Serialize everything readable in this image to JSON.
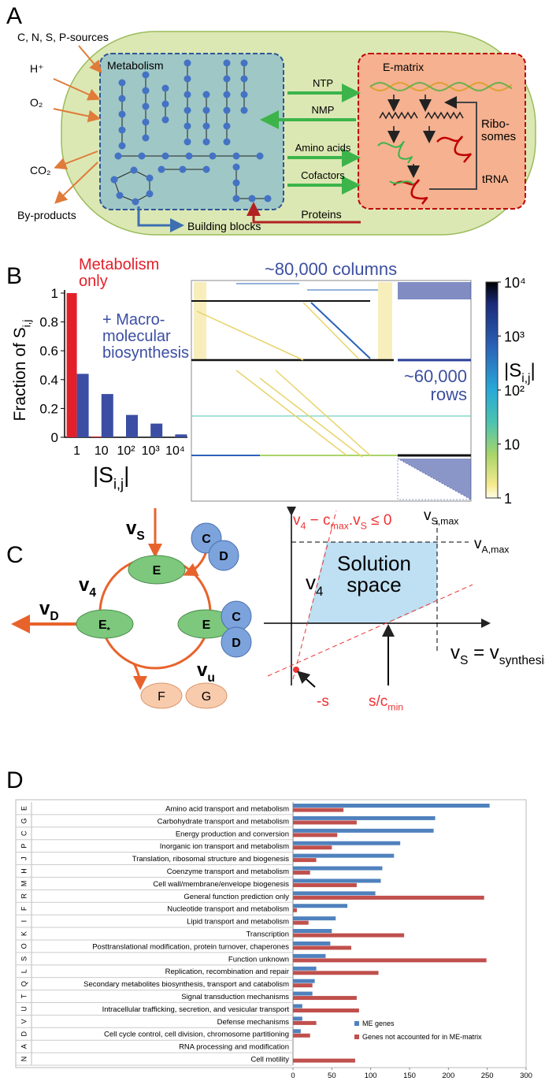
{
  "panel_labels": [
    "A",
    "B",
    "C",
    "D"
  ],
  "diagram_a": {
    "inputs": [
      "C, N, S, P-sources",
      "H⁺",
      "O₂",
      "CO₂",
      "By-products"
    ],
    "metabolism": "Metabolism",
    "e_matrix": "E-matrix",
    "exchanges": [
      "NTP",
      "NMP",
      "Amino acids",
      "Cofactors"
    ],
    "proteins": "Proteins",
    "building_blocks": "Building blocks",
    "ribosomes": "Ribo-somes",
    "trna": "tRNA"
  },
  "matrix_b": {
    "columns_note": "~80,000 columns",
    "rows_note": "~60,000 rows",
    "colorbar": {
      "scale": "log",
      "lim": [
        1,
        10000
      ],
      "ticks": [
        1,
        10,
        {
          "value": 100,
          "label": "10²"
        },
        {
          "value": 1000,
          "label": "10³"
        },
        {
          "value": 10000,
          "label": "10⁴"
        }
      ],
      "label": [
        {
          "text": "|S"
        },
        {
          "sub": "i,j"
        },
        {
          "text": "|"
        }
      ]
    }
  },
  "chart_data": [
    {
      "type": "bar",
      "categories": [
        "1",
        "10",
        "10²",
        "10³",
        "10⁴"
      ],
      "series": [
        {
          "name": "Metabolism only",
          "color": "#e3202a",
          "values": [
            1,
            0.005,
            0,
            0,
            0
          ]
        },
        {
          "name": "+ Macro-molecular biosynthesis",
          "color": "#3b4ea3",
          "values": [
            0.44,
            0.3,
            0.155,
            0.095,
            0.02
          ]
        }
      ],
      "ylim": [
        0,
        1
      ],
      "yticks": [
        0,
        0.2,
        0.4,
        0.6,
        0.8,
        1
      ],
      "ylabel": [
        {
          "text": "Fraction of S"
        },
        {
          "sub": "i,j"
        }
      ],
      "xlabel": [
        {
          "text": "|S"
        },
        {
          "sub": "i,j"
        },
        {
          "text": "|"
        }
      ]
    },
    {
      "type": "bar",
      "orientation": "horizontal",
      "categories": [
        "Amino acid transport and metabolism",
        "Carbohydrate transport and metabolism",
        "Energy production and conversion",
        "Inorganic ion transport and metabolism",
        "Translation, ribosomal structure and biogenesis",
        "Coenzyme transport and metabolism",
        "Cell wall/membrane/envelope biogenesis",
        "General function prediction only",
        "Nucleotide transport and metabolism",
        "Lipid transport and metabolism",
        "Transcription",
        "Posttranslational modification, protein turnover, chaperones",
        "Function unknown",
        "Replication, recombination and repair",
        "Secondary metabolites biosynthesis, transport and catabolism",
        "Signal transduction mechanisms",
        "Intracellular trafficking, secretion, and vesicular transport",
        "Defense mechanisms",
        "Cell cycle control, cell division, chromosome partitioning",
        "RNA processing and modification",
        "Cell motility"
      ],
      "category_codes": [
        "E",
        "G",
        "C",
        "P",
        "J",
        "H",
        "M",
        "R",
        "F",
        "I",
        "K",
        "O",
        "S",
        "L",
        "Q",
        "T",
        "U",
        "V",
        "D",
        "A",
        "N"
      ],
      "series": [
        {
          "name": "ME genes",
          "color": "#4f81bd",
          "values": [
            253,
            183,
            181,
            138,
            130,
            115,
            113,
            106,
            70,
            55,
            50,
            48,
            42,
            30,
            28,
            25,
            12,
            12,
            10,
            0,
            0
          ]
        },
        {
          "name": "Genes not accounted for in ME-matrix",
          "color": "#c0504d",
          "values": [
            65,
            82,
            57,
            50,
            30,
            22,
            82,
            246,
            5,
            20,
            143,
            75,
            249,
            110,
            25,
            82,
            85,
            30,
            22,
            0,
            80
          ]
        }
      ],
      "xlim": [
        0,
        300
      ],
      "xticks": [
        0,
        50,
        100,
        150,
        200,
        250,
        300
      ],
      "legend": "lower right"
    }
  ],
  "diagram_c": {
    "enzyme": "E",
    "enzyme_active": [
      {
        "text": "E"
      },
      {
        "sub": "*"
      }
    ],
    "cofactors": [
      "C",
      "D"
    ],
    "products": [
      "F",
      "G"
    ],
    "fluxes": {
      "vs": [
        {
          "text": "v"
        },
        {
          "sub": "S"
        }
      ],
      "v4": [
        {
          "text": "v"
        },
        {
          "sub": "4"
        }
      ],
      "vd": [
        {
          "text": "v"
        },
        {
          "sub": "D"
        }
      ],
      "vu": [
        {
          "text": "v"
        },
        {
          "sub": "u"
        }
      ]
    },
    "plot": {
      "constraint": [
        {
          "text": "v"
        },
        {
          "sub": "4"
        },
        {
          "text": " − c"
        },
        {
          "sub": "max"
        },
        {
          "text": ".v"
        },
        {
          "sub": "S"
        },
        {
          "text": " ≤ 0"
        }
      ],
      "vs_max": [
        {
          "text": "v"
        },
        {
          "sub": "S,max"
        }
      ],
      "va_max": [
        {
          "text": "v"
        },
        {
          "sub": "A,max"
        }
      ],
      "y_label": [
        {
          "text": "v"
        },
        {
          "sub": "4"
        }
      ],
      "region": "Solution space",
      "x_label": [
        {
          "text": "v"
        },
        {
          "sub": "S"
        },
        {
          "text": " = v"
        },
        {
          "sub": "synthesis E"
        }
      ],
      "neg_s": "-s",
      "s_cmin": [
        {
          "text": "s/c"
        },
        {
          "sub": "min"
        }
      ]
    }
  }
}
